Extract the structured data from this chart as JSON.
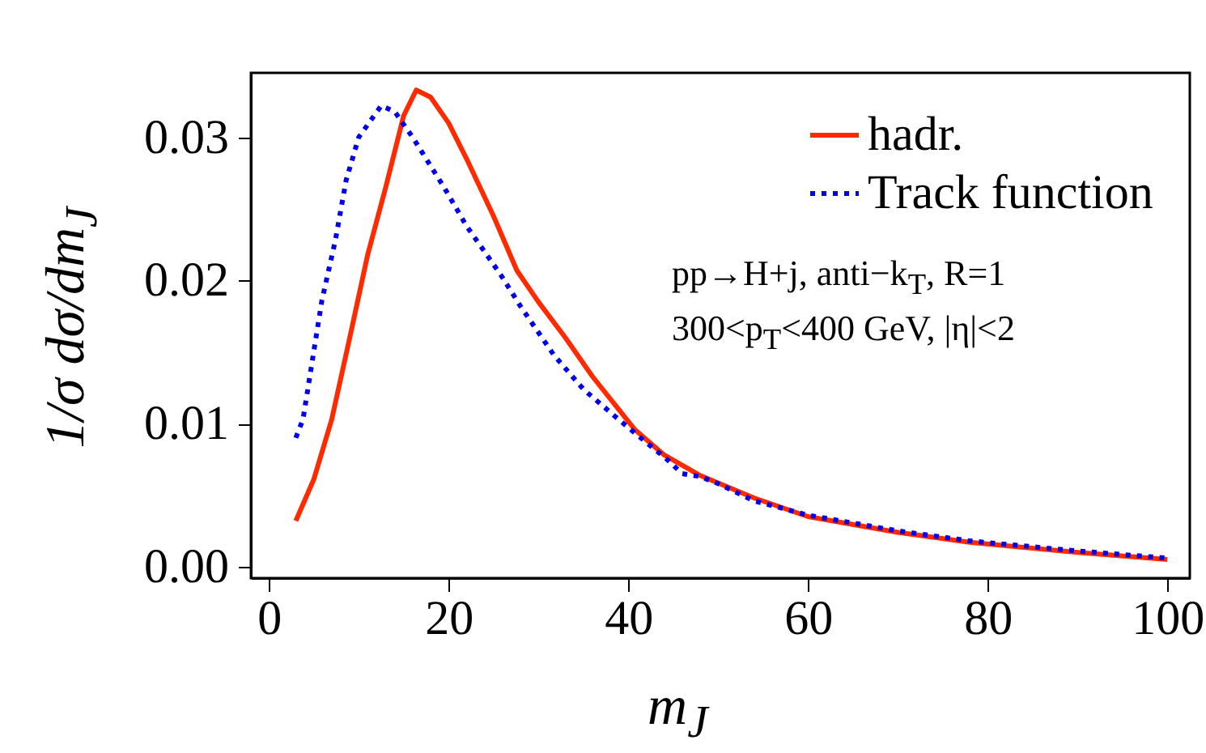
{
  "chart_data": {
    "type": "line",
    "xlabel": "m$_{J}$",
    "ylabel": "1/σ dσ/dm$_{J}$",
    "annotations": [
      "pp→H+j, anti−k$_{T}$, R=1",
      "300<p$_{T}$<400 GeV, |η|<2"
    ],
    "xlim": [
      -2,
      102.5
    ],
    "xticks": [
      0,
      20,
      40,
      60,
      80,
      100
    ],
    "ylim": [
      -0.0008,
      0.0345
    ],
    "yticks": [
      {
        "value": 0,
        "label": "0.00"
      },
      0.01,
      0.02,
      0.03
    ],
    "grid": false,
    "legend": "top right",
    "marker": "none",
    "series": [
      {
        "name": "hadr.",
        "color": "#ff2a00",
        "line_style": "solid",
        "x": [
          3,
          5,
          7,
          9,
          11,
          13,
          14,
          15,
          16.4,
          18,
          20,
          22,
          25,
          27.6,
          30,
          33,
          36,
          40.7,
          44,
          47.9,
          54,
          60,
          70,
          78,
          90,
          100
        ],
        "values": [
          0.0032,
          0.0061,
          0.0103,
          0.016,
          0.0218,
          0.0265,
          0.029,
          0.0315,
          0.0333,
          0.0328,
          0.031,
          0.0285,
          0.0245,
          0.0207,
          0.0185,
          0.016,
          0.0133,
          0.0096,
          0.0078,
          0.0064,
          0.0048,
          0.0035,
          0.0024,
          0.0017,
          0.001,
          0.0005
        ]
      },
      {
        "name": "Track function",
        "color": "#0000ee",
        "line_style": "dotted",
        "x": [
          3,
          3.8,
          5.9,
          7.4,
          8.6,
          10,
          12.5,
          14,
          16,
          19.5,
          22,
          25.8,
          28,
          31.7,
          35,
          38.9,
          41,
          44.3,
          46,
          48,
          50,
          54,
          60,
          70,
          78,
          90,
          100
        ],
        "values": [
          0.009,
          0.0103,
          0.0186,
          0.0228,
          0.027,
          0.03,
          0.0322,
          0.0318,
          0.03,
          0.0265,
          0.0238,
          0.0204,
          0.0182,
          0.0148,
          0.0124,
          0.0103,
          0.0092,
          0.0075,
          0.0065,
          0.0063,
          0.0058,
          0.0046,
          0.0036,
          0.0025,
          0.0018,
          0.0011,
          0.0006
        ]
      }
    ]
  }
}
